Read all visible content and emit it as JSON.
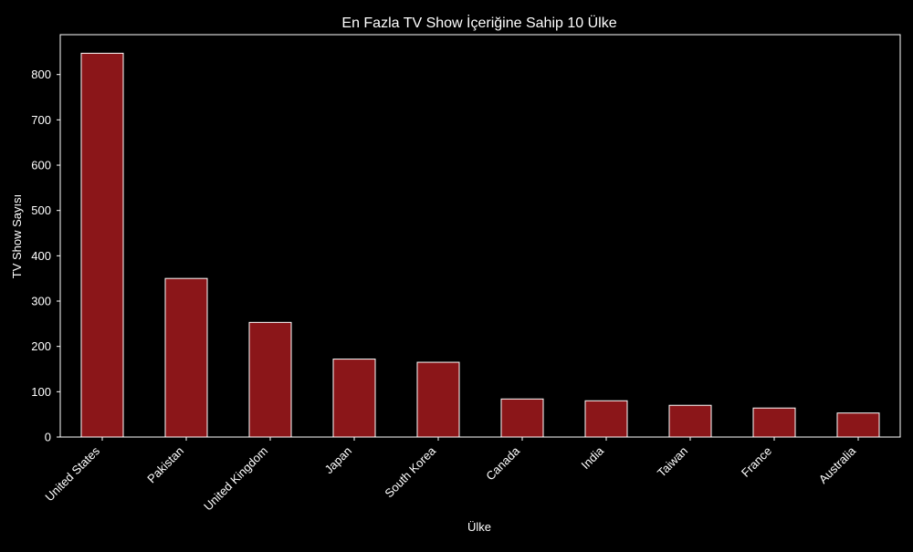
{
  "chart_data": {
    "type": "bar",
    "title": "En Fazla TV Show İçeriğine Sahip 10 Ülke",
    "xlabel": "Ülke",
    "ylabel": "TV Show Sayısı",
    "categories": [
      "United States",
      "Pakistan",
      "United Kingdom",
      "Japan",
      "South Korea",
      "Canada",
      "India",
      "Taiwan",
      "France",
      "Australia"
    ],
    "values": [
      847,
      350,
      253,
      172,
      165,
      84,
      80,
      70,
      64,
      53
    ],
    "ylim": [
      0,
      888
    ],
    "yticks": [
      0,
      100,
      200,
      300,
      400,
      500,
      600,
      700,
      800
    ],
    "grid": false,
    "legend": "none",
    "colors": {
      "background": "#000000",
      "bar_fill": "#8b1619",
      "bar_edge": "#ffffff",
      "axes": "#ffffff",
      "text": "#ffffff"
    }
  }
}
